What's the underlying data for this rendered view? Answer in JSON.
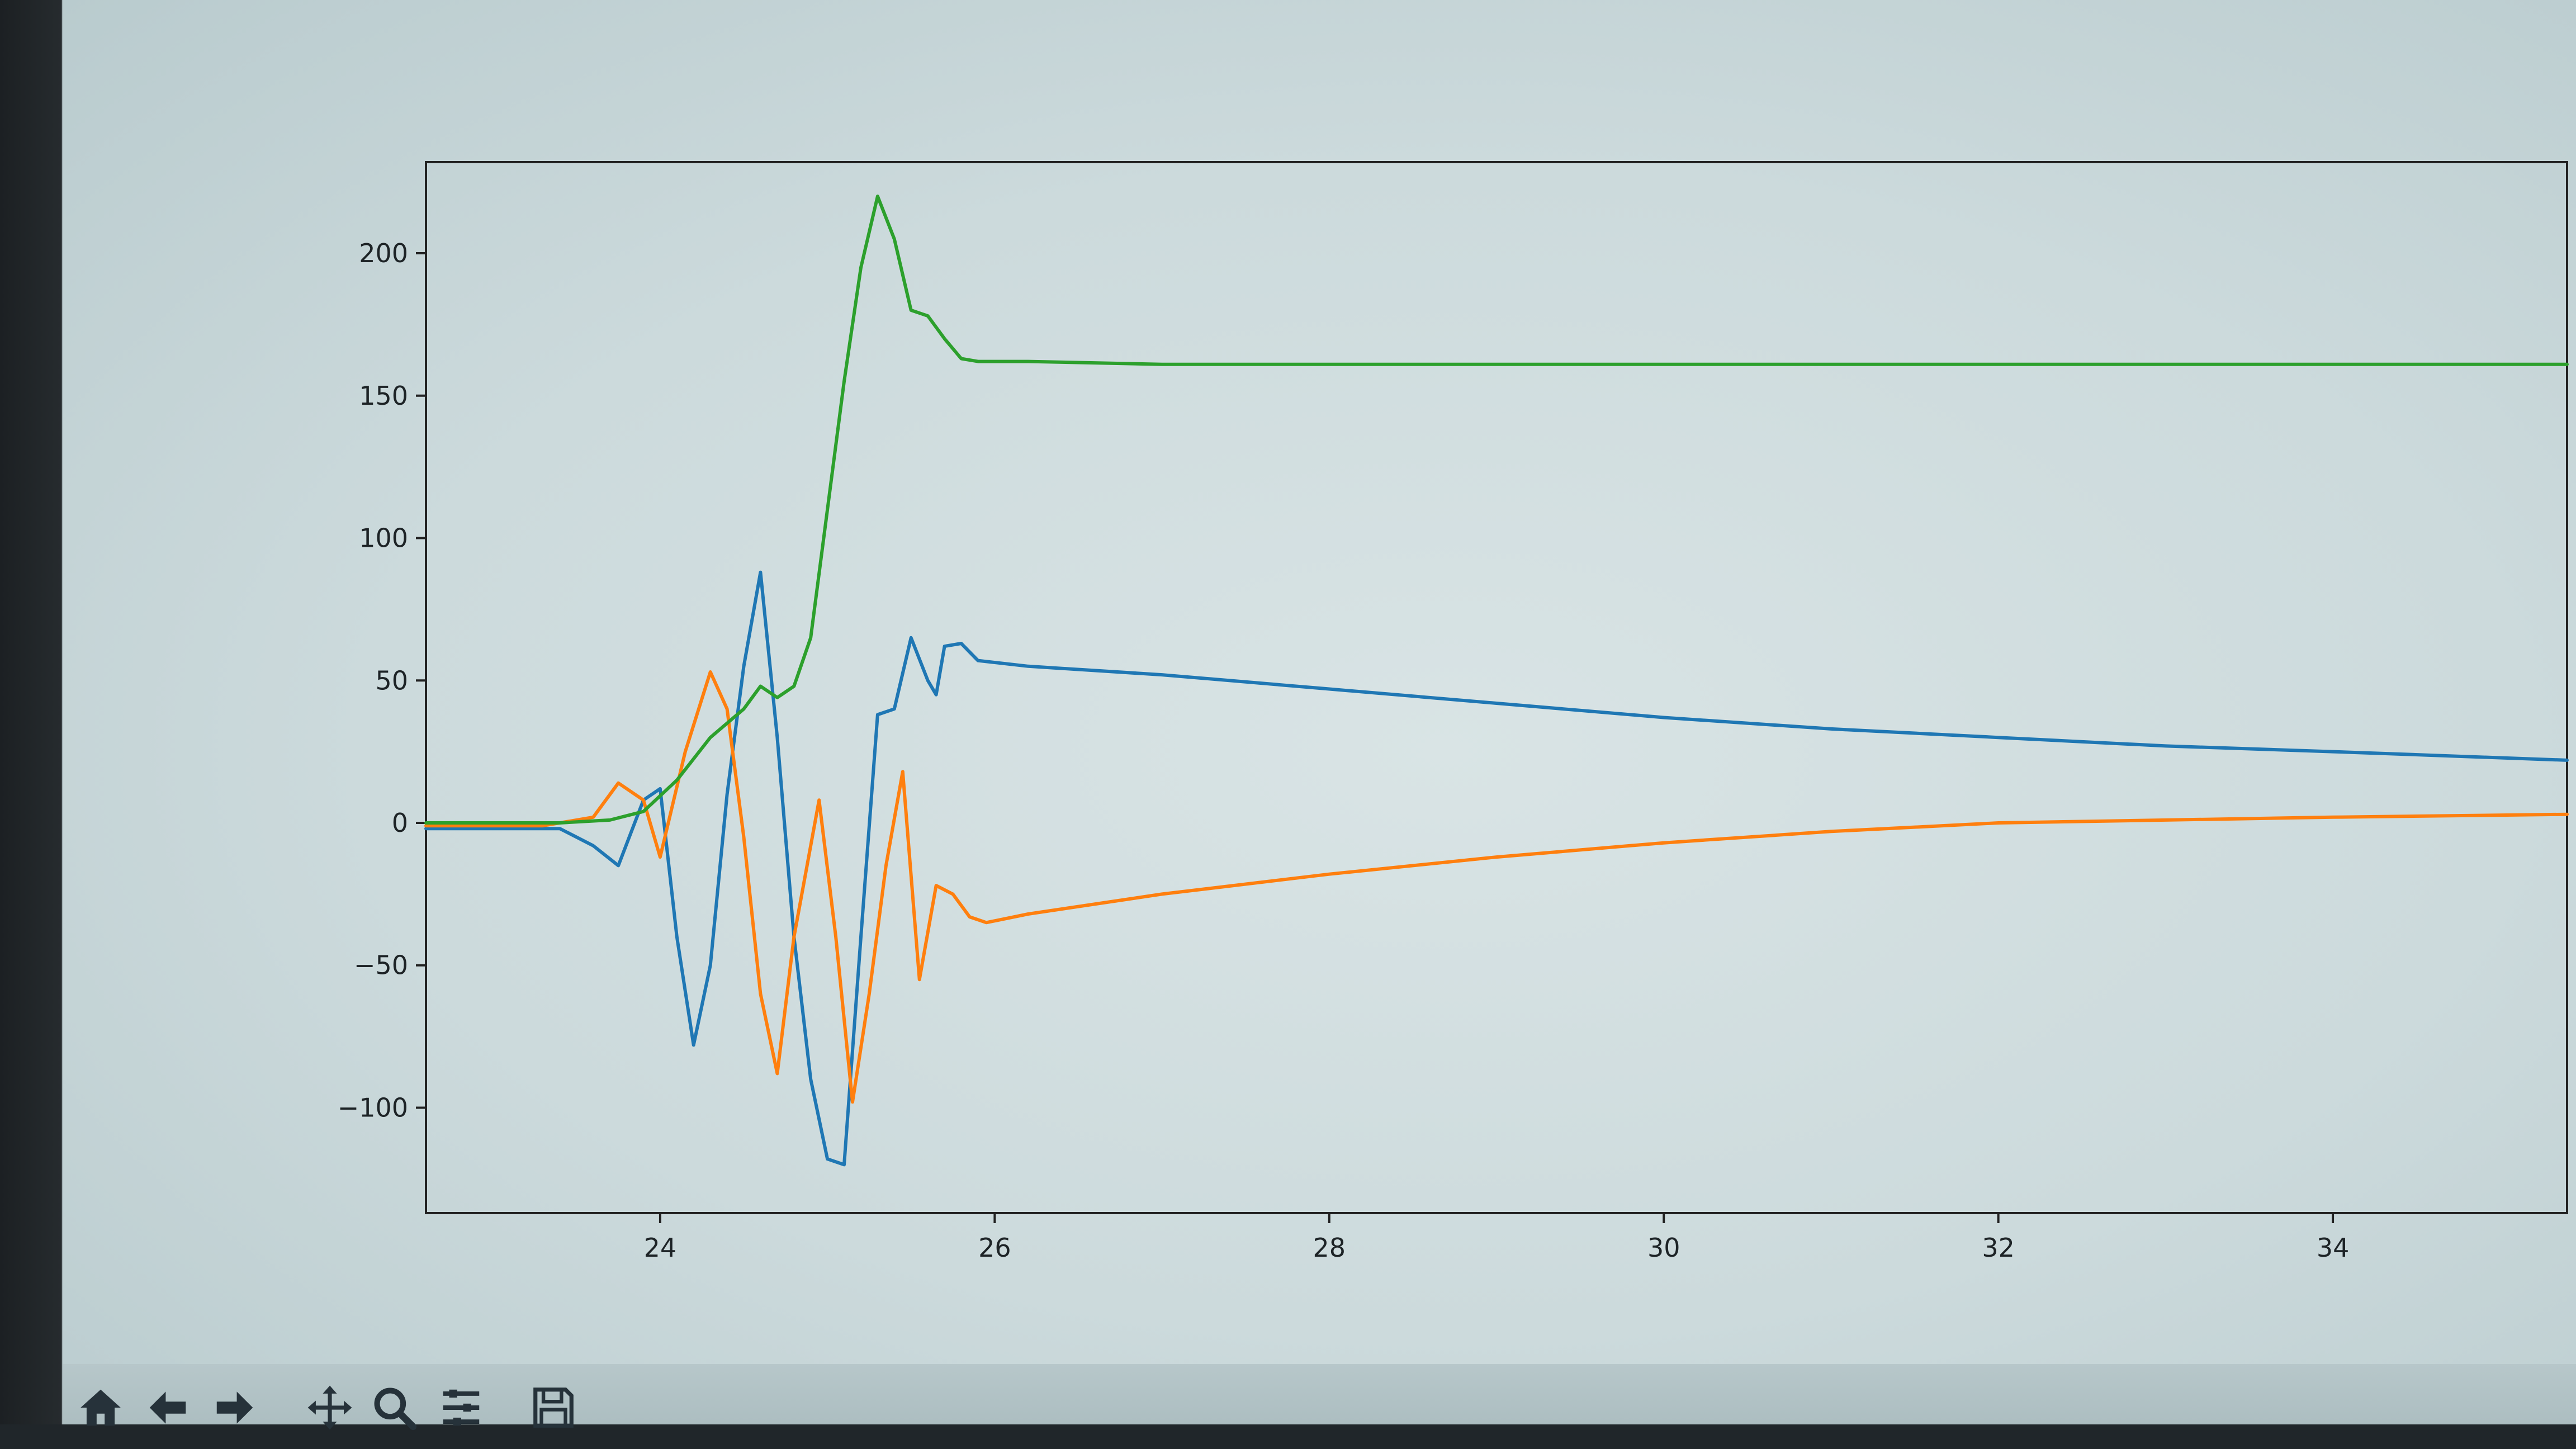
{
  "window": {
    "title": ""
  },
  "toolbar": {
    "buttons": [
      {
        "name": "home-button",
        "icon": "home-icon"
      },
      {
        "name": "back-button",
        "icon": "arrow-left-icon"
      },
      {
        "name": "forward-button",
        "icon": "arrow-right-icon"
      },
      {
        "name": "pan-button",
        "icon": "move-icon"
      },
      {
        "name": "zoom-button",
        "icon": "magnifier-icon"
      },
      {
        "name": "configure-subplots-button",
        "icon": "sliders-icon"
      },
      {
        "name": "save-button",
        "icon": "floppy-disk-icon"
      }
    ]
  },
  "colors": {
    "blue": "#1f77b4",
    "orange": "#ff7f0e",
    "green": "#2ca02c",
    "axes": "#222222"
  },
  "chart_data": {
    "type": "line",
    "title": "",
    "xlabel": "",
    "ylabel": "",
    "xlim": [
      22.6,
      35.4
    ],
    "ylim": [
      -137,
      232
    ],
    "grid": false,
    "legend": "none",
    "xticks": [
      24,
      26,
      28,
      30,
      32,
      34
    ],
    "yticks": [
      -100,
      -50,
      0,
      50,
      100,
      150,
      200
    ],
    "xtick_labels": [
      "24",
      "26",
      "28",
      "30",
      "32",
      "34"
    ],
    "ytick_labels": [
      "−100",
      "−50",
      "0",
      "50",
      "100",
      "150",
      "200"
    ],
    "series": [
      {
        "color": "#1f77b4",
        "x": [
          22.6,
          23.4,
          23.6,
          23.75,
          23.9,
          24.0,
          24.1,
          24.2,
          24.3,
          24.4,
          24.5,
          24.6,
          24.7,
          24.8,
          24.9,
          25.0,
          25.1,
          25.2,
          25.3,
          25.4,
          25.5,
          25.6,
          25.65,
          25.7,
          25.8,
          25.9,
          26.2,
          27.0,
          28.0,
          29.0,
          30.0,
          31.0,
          32.0,
          33.0,
          34.0,
          35.4
        ],
        "y": [
          -2,
          -2,
          -8,
          -15,
          8,
          12,
          -40,
          -78,
          -50,
          10,
          55,
          88,
          30,
          -40,
          -90,
          -118,
          -120,
          -40,
          38,
          40,
          65,
          50,
          45,
          62,
          63,
          57,
          55,
          52,
          47,
          42,
          37,
          33,
          30,
          27,
          25,
          22
        ]
      },
      {
        "color": "#ff7f0e",
        "x": [
          22.6,
          23.3,
          23.6,
          23.75,
          23.9,
          24.0,
          24.15,
          24.3,
          24.4,
          24.5,
          24.6,
          24.7,
          24.8,
          24.95,
          25.05,
          25.15,
          25.25,
          25.35,
          25.45,
          25.55,
          25.65,
          25.75,
          25.85,
          25.95,
          26.2,
          27.0,
          28.0,
          29.0,
          30.0,
          31.0,
          32.0,
          33.0,
          34.0,
          35.4
        ],
        "y": [
          -1,
          -1,
          2,
          14,
          8,
          -12,
          25,
          53,
          40,
          -5,
          -60,
          -88,
          -40,
          8,
          -40,
          -98,
          -60,
          -15,
          18,
          -55,
          -22,
          -25,
          -33,
          -35,
          -32,
          -25,
          -18,
          -12,
          -7,
          -3,
          0,
          1,
          2,
          3
        ]
      },
      {
        "color": "#2ca02c",
        "x": [
          22.6,
          23.4,
          23.7,
          23.9,
          24.1,
          24.3,
          24.5,
          24.6,
          24.7,
          24.8,
          24.9,
          25.0,
          25.1,
          25.2,
          25.3,
          25.4,
          25.5,
          25.6,
          25.7,
          25.8,
          25.9,
          26.2,
          27.0,
          28.0,
          29.0,
          30.0,
          31.0,
          32.0,
          33.0,
          34.0,
          35.4
        ],
        "y": [
          0,
          0,
          1,
          4,
          15,
          30,
          40,
          48,
          44,
          48,
          65,
          110,
          155,
          195,
          220,
          205,
          180,
          178,
          170,
          163,
          162,
          162,
          161,
          161,
          161,
          161,
          161,
          161,
          161,
          161,
          161
        ]
      }
    ]
  }
}
